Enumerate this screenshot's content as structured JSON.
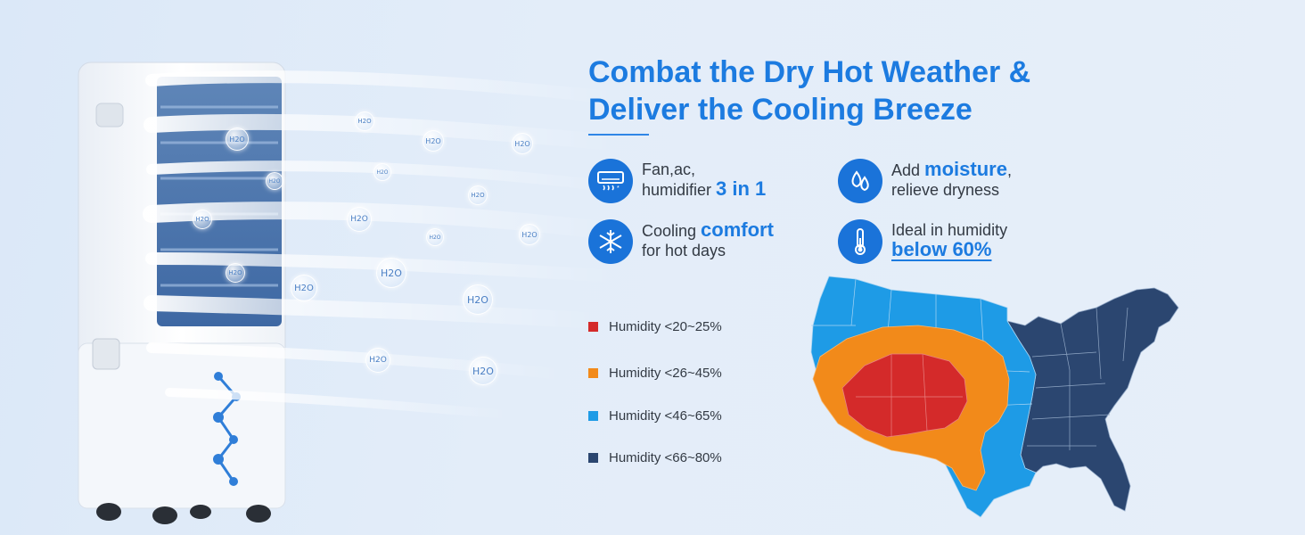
{
  "headline": {
    "line1": "Combat the Dry Hot Weather &",
    "line2": "Deliver the Cooling Breeze"
  },
  "features": [
    {
      "icon": "air-conditioner-icon",
      "pre": "Fan,ac,",
      "line2_pre": "humidifier ",
      "highlight": "3 in 1",
      "post": ""
    },
    {
      "icon": "water-drops-icon",
      "pre": "Add ",
      "highlight": "moisture",
      "post": ",",
      "line2": "relieve dryness"
    },
    {
      "icon": "snowflake-icon",
      "pre": "Cooling ",
      "highlight": "comfort",
      "line2": "for hot days"
    },
    {
      "icon": "thermometer-icon",
      "pre": "Ideal in humidity",
      "highlight": "below 60%"
    }
  ],
  "bubble_label": "H2O",
  "legend": [
    {
      "label": "Humidity <20~25%",
      "color": "#d42a2a"
    },
    {
      "label": "Humidity <26~45%",
      "color": "#f28a1a"
    },
    {
      "label": "Humidity <46~65%",
      "color": "#1e9be6"
    },
    {
      "label": "Humidity <66~80%",
      "color": "#2b4670"
    }
  ],
  "colors": {
    "brand_blue": "#1c7be0",
    "icon_bg": "#1a73d9",
    "text_dark": "#333a44"
  }
}
